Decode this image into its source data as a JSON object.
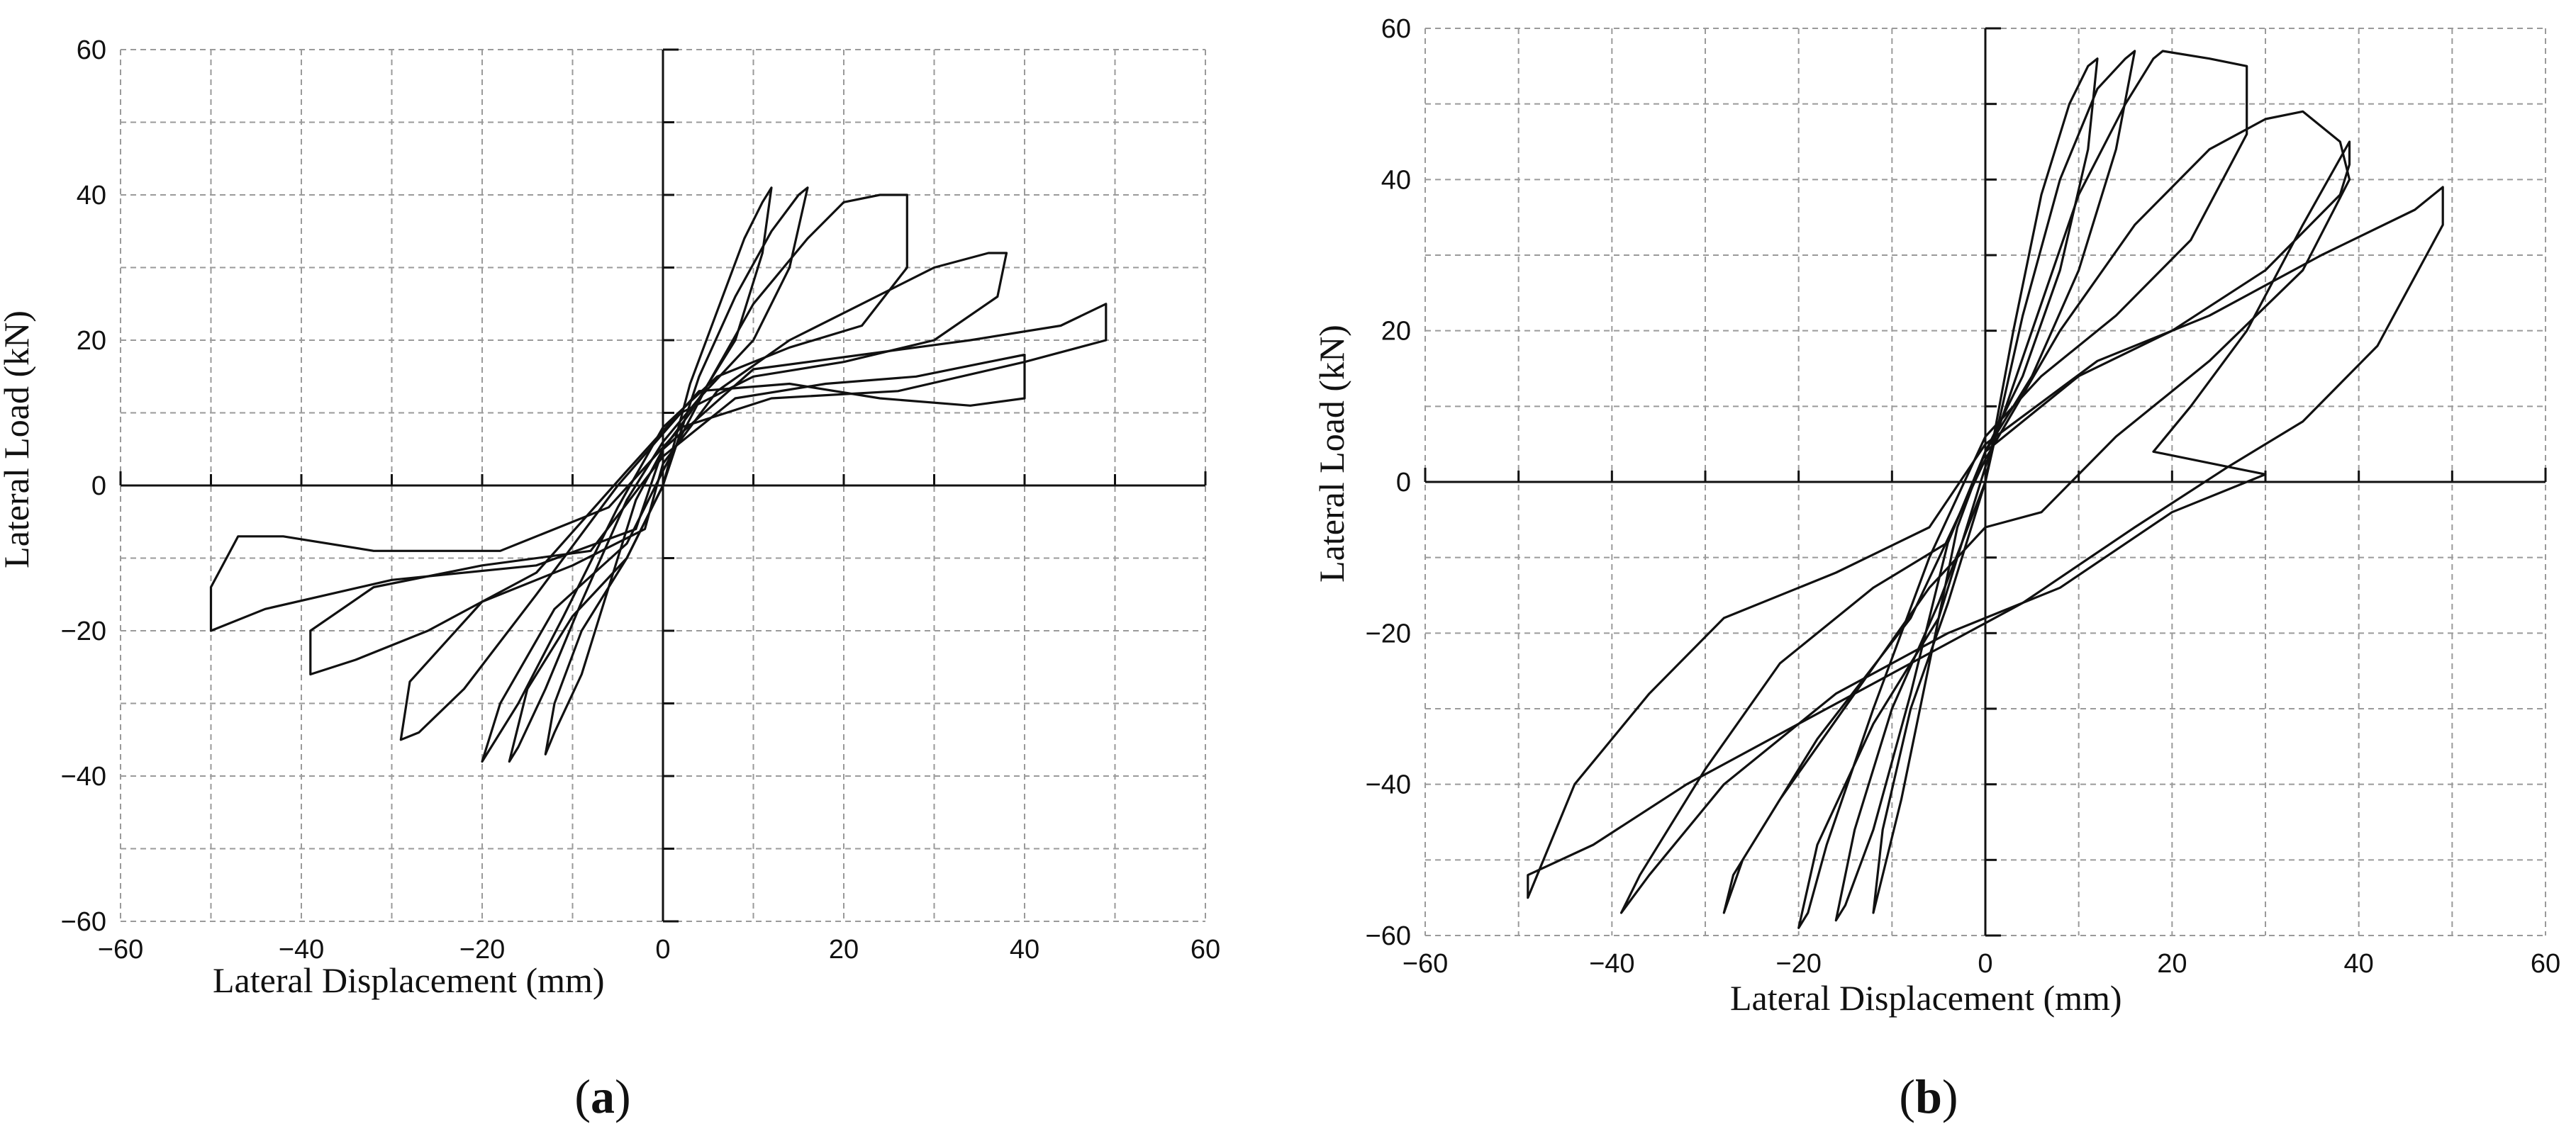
{
  "chart_data": [
    {
      "type": "line",
      "panel_label": "a",
      "xlabel": "Lateral Displacement (mm)",
      "ylabel": "Lateral Load (kN)",
      "xlim": [
        -60,
        60
      ],
      "ylim": [
        -60,
        60
      ],
      "xticks": [
        -60,
        -40,
        -20,
        0,
        20,
        40,
        60
      ],
      "yticks": [
        -60,
        -40,
        -20,
        0,
        20,
        40,
        60
      ],
      "grid": true,
      "series": [
        {
          "values": [
            [
              0,
              0
            ],
            [
              3,
              14
            ],
            [
              6,
              24
            ],
            [
              9,
              34
            ],
            [
              11,
              39
            ],
            [
              12,
              41
            ],
            [
              11,
              32
            ],
            [
              8,
              20
            ],
            [
              3,
              10
            ],
            [
              0,
              5
            ],
            [
              -3,
              -2
            ],
            [
              -6,
              -14
            ],
            [
              -9,
              -26
            ],
            [
              -12,
              -34
            ],
            [
              -13,
              -37
            ],
            [
              -12,
              -30
            ],
            [
              -9,
              -20
            ],
            [
              -4,
              -10
            ],
            [
              0,
              0
            ]
          ]
        },
        {
          "values": [
            [
              0,
              0
            ],
            [
              4,
              15
            ],
            [
              8,
              26
            ],
            [
              12,
              35
            ],
            [
              15,
              40
            ],
            [
              16,
              41
            ],
            [
              14,
              30
            ],
            [
              10,
              20
            ],
            [
              4,
              12
            ],
            [
              0,
              6
            ],
            [
              -4,
              -2
            ],
            [
              -9,
              -16
            ],
            [
              -13,
              -28
            ],
            [
              -16,
              -36
            ],
            [
              -17,
              -38
            ],
            [
              -15,
              -28
            ],
            [
              -10,
              -18
            ],
            [
              -4,
              -10
            ],
            [
              0,
              0
            ]
          ]
        },
        {
          "values": [
            [
              0,
              2
            ],
            [
              5,
              14
            ],
            [
              10,
              25
            ],
            [
              16,
              34
            ],
            [
              20,
              39
            ],
            [
              24,
              40
            ],
            [
              27,
              40
            ],
            [
              27,
              30
            ],
            [
              22,
              22
            ],
            [
              14,
              19
            ],
            [
              6,
              15
            ],
            [
              0,
              8
            ],
            [
              -5,
              -3
            ],
            [
              -11,
              -18
            ],
            [
              -16,
              -30
            ],
            [
              -19,
              -36
            ],
            [
              -20,
              -38
            ],
            [
              -18,
              -30
            ],
            [
              -12,
              -17
            ],
            [
              -4,
              -8
            ],
            [
              0,
              2
            ]
          ]
        },
        {
          "values": [
            [
              0,
              3
            ],
            [
              6,
              13
            ],
            [
              14,
              20
            ],
            [
              22,
              25
            ],
            [
              30,
              30
            ],
            [
              36,
              32
            ],
            [
              38,
              32
            ],
            [
              37,
              26
            ],
            [
              30,
              20
            ],
            [
              20,
              17
            ],
            [
              10,
              15
            ],
            [
              2,
              10
            ],
            [
              -5,
              0
            ],
            [
              -14,
              -15
            ],
            [
              -22,
              -28
            ],
            [
              -27,
              -34
            ],
            [
              -29,
              -35
            ],
            [
              -28,
              -27
            ],
            [
              -20,
              -16
            ],
            [
              -10,
              -11
            ],
            [
              -2,
              -6
            ],
            [
              0,
              3
            ]
          ]
        },
        {
          "values": [
            [
              0,
              4
            ],
            [
              8,
              12
            ],
            [
              18,
              14
            ],
            [
              28,
              15
            ],
            [
              36,
              17
            ],
            [
              40,
              18
            ],
            [
              40,
              12
            ],
            [
              34,
              11
            ],
            [
              24,
              12
            ],
            [
              14,
              14
            ],
            [
              4,
              13
            ],
            [
              -4,
              2
            ],
            [
              -14,
              -12
            ],
            [
              -26,
              -20
            ],
            [
              -34,
              -24
            ],
            [
              -39,
              -26
            ],
            [
              -39,
              -20
            ],
            [
              -32,
              -14
            ],
            [
              -20,
              -11
            ],
            [
              -8,
              -9
            ],
            [
              0,
              4
            ]
          ]
        },
        {
          "values": [
            [
              0,
              5
            ],
            [
              10,
              16
            ],
            [
              22,
              18
            ],
            [
              34,
              20
            ],
            [
              44,
              22
            ],
            [
              49,
              25
            ],
            [
              49,
              20
            ],
            [
              40,
              17
            ],
            [
              26,
              13
            ],
            [
              12,
              12
            ],
            [
              2,
              8
            ],
            [
              -6,
              -3
            ],
            [
              -18,
              -9
            ],
            [
              -32,
              -9
            ],
            [
              -42,
              -7
            ],
            [
              -47,
              -7
            ],
            [
              -50,
              -14
            ],
            [
              -50,
              -20
            ],
            [
              -44,
              -17
            ],
            [
              -30,
              -13
            ],
            [
              -14,
              -11
            ],
            [
              -3,
              -6
            ],
            [
              0,
              5
            ]
          ]
        }
      ]
    },
    {
      "type": "line",
      "panel_label": "b",
      "xlabel": "Lateral Displacement (mm)",
      "ylabel": "Lateral Load (kN)",
      "xlim": [
        -60,
        60
      ],
      "ylim": [
        -60,
        60
      ],
      "xticks": [
        -60,
        -40,
        -20,
        0,
        20,
        40,
        60
      ],
      "yticks": [
        -60,
        -40,
        -20,
        0,
        20,
        40,
        60
      ],
      "grid": true,
      "series": [
        {
          "values": [
            [
              0,
              0
            ],
            [
              3,
              20
            ],
            [
              6,
              38
            ],
            [
              9,
              50
            ],
            [
              11,
              55
            ],
            [
              12,
              56
            ],
            [
              11,
              44
            ],
            [
              8,
              28
            ],
            [
              4,
              14
            ],
            [
              0,
              4
            ],
            [
              -3,
              -6
            ],
            [
              -6,
              -24
            ],
            [
              -9,
              -42
            ],
            [
              -11,
              -52
            ],
            [
              -12,
              -57
            ],
            [
              -11,
              -46
            ],
            [
              -8,
              -30
            ],
            [
              -4,
              -16
            ],
            [
              0,
              0
            ]
          ]
        },
        {
          "values": [
            [
              0,
              0
            ],
            [
              4,
              22
            ],
            [
              8,
              40
            ],
            [
              12,
              52
            ],
            [
              15,
              56
            ],
            [
              16,
              57
            ],
            [
              14,
              44
            ],
            [
              10,
              28
            ],
            [
              5,
              14
            ],
            [
              0,
              4
            ],
            [
              -4,
              -8
            ],
            [
              -8,
              -28
            ],
            [
              -12,
              -46
            ],
            [
              -15,
              -56
            ],
            [
              -16,
              -58
            ],
            [
              -14,
              -46
            ],
            [
              -10,
              -30
            ],
            [
              -5,
              -16
            ],
            [
              0,
              0
            ]
          ]
        },
        {
          "values": [
            [
              0,
              2
            ],
            [
              5,
              20
            ],
            [
              10,
              38
            ],
            [
              15,
              50
            ],
            [
              18,
              56
            ],
            [
              19,
              57
            ],
            [
              24,
              56
            ],
            [
              28,
              55
            ],
            [
              28,
              46
            ],
            [
              22,
              32
            ],
            [
              14,
              22
            ],
            [
              6,
              14
            ],
            [
              0,
              6
            ],
            [
              -6,
              -10
            ],
            [
              -12,
              -30
            ],
            [
              -17,
              -48
            ],
            [
              -19,
              -57
            ],
            [
              -20,
              -59
            ],
            [
              -18,
              -48
            ],
            [
              -12,
              -32
            ],
            [
              -5,
              -18
            ],
            [
              0,
              2
            ]
          ]
        },
        {
          "values": [
            [
              0,
              3
            ],
            [
              8,
              20
            ],
            [
              16,
              34
            ],
            [
              24,
              44
            ],
            [
              30,
              48
            ],
            [
              34,
              49
            ],
            [
              38,
              45
            ],
            [
              39,
              40
            ],
            [
              34,
              28
            ],
            [
              24,
              16
            ],
            [
              14,
              6
            ],
            [
              6,
              -4
            ],
            [
              0,
              -6
            ],
            [
              -6,
              -14
            ],
            [
              -14,
              -28
            ],
            [
              -22,
              -42
            ],
            [
              -27,
              -52
            ],
            [
              -28,
              -57
            ],
            [
              -26,
              -50
            ],
            [
              -18,
              -34
            ],
            [
              -8,
              -18
            ],
            [
              0,
              3
            ]
          ]
        },
        {
          "values": [
            [
              0,
              4
            ],
            [
              10,
              14
            ],
            [
              20,
              20
            ],
            [
              30,
              28
            ],
            [
              38,
              38
            ],
            [
              39,
              42
            ],
            [
              39,
              45
            ],
            [
              34,
              34
            ],
            [
              28,
              20
            ],
            [
              22,
              10
            ],
            [
              18,
              4
            ],
            [
              26,
              2
            ],
            [
              30,
              1
            ],
            [
              20,
              -4
            ],
            [
              8,
              -14
            ],
            [
              -4,
              -20
            ],
            [
              -16,
              -28
            ],
            [
              -28,
              -40
            ],
            [
              -36,
              -52
            ],
            [
              -39,
              -57
            ],
            [
              -37,
              -52
            ],
            [
              -30,
              -38
            ],
            [
              -22,
              -24
            ],
            [
              -12,
              -14
            ],
            [
              -4,
              -8
            ],
            [
              0,
              4
            ]
          ]
        },
        {
          "values": [
            [
              0,
              5
            ],
            [
              12,
              16
            ],
            [
              24,
              22
            ],
            [
              36,
              30
            ],
            [
              46,
              36
            ],
            [
              49,
              39
            ],
            [
              49,
              34
            ],
            [
              42,
              18
            ],
            [
              34,
              8
            ],
            [
              26,
              2
            ],
            [
              16,
              -6
            ],
            [
              4,
              -16
            ],
            [
              -8,
              -24
            ],
            [
              -20,
              -32
            ],
            [
              -32,
              -40
            ],
            [
              -42,
              -48
            ],
            [
              -49,
              -52
            ],
            [
              -49,
              -55
            ],
            [
              -44,
              -40
            ],
            [
              -36,
              -28
            ],
            [
              -28,
              -18
            ],
            [
              -16,
              -12
            ],
            [
              -6,
              -6
            ],
            [
              0,
              5
            ]
          ]
        }
      ]
    }
  ]
}
